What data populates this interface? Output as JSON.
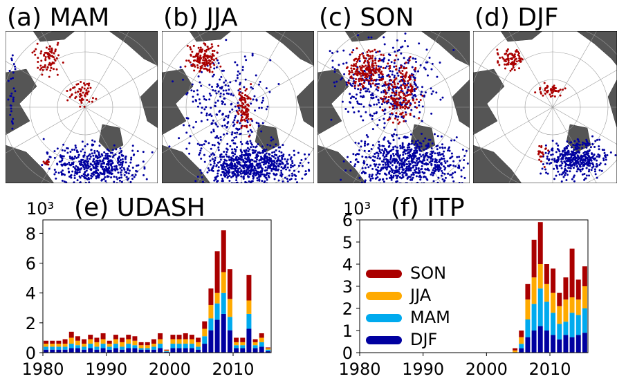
{
  "maps": [
    {
      "title": "(a) MAM"
    },
    {
      "title": "(b) JJA"
    },
    {
      "title": "(c) SON"
    },
    {
      "title": "(d) DJF"
    }
  ],
  "chart_data": [
    {
      "type": "bar",
      "stacked": true,
      "title": "(e) UDASH",
      "y_multiplier": "10³",
      "x": [
        1980,
        1981,
        1982,
        1983,
        1984,
        1985,
        1986,
        1987,
        1988,
        1989,
        1990,
        1991,
        1992,
        1993,
        1994,
        1995,
        1996,
        1997,
        1998,
        1999,
        2000,
        2001,
        2002,
        2003,
        2004,
        2005,
        2006,
        2007,
        2008,
        2009,
        2010,
        2011,
        2012,
        2013,
        2014,
        2015
      ],
      "series": [
        {
          "name": "DJF",
          "color": "#0000a0",
          "values": [
            0.2,
            0.2,
            0.2,
            0.2,
            0.3,
            0.3,
            0.2,
            0.3,
            0.2,
            0.3,
            0.2,
            0.3,
            0.2,
            0.3,
            0.3,
            0.2,
            0.2,
            0.2,
            0.3,
            0.05,
            0.3,
            0.3,
            0.3,
            0.3,
            0.2,
            0.6,
            1.5,
            2.2,
            2.6,
            1.5,
            0.3,
            0.3,
            1.6,
            0.3,
            0.4,
            0.1
          ]
        },
        {
          "name": "MAM",
          "color": "#00aaee",
          "values": [
            0.2,
            0.2,
            0.2,
            0.2,
            0.3,
            0.2,
            0.2,
            0.3,
            0.2,
            0.3,
            0.2,
            0.3,
            0.2,
            0.3,
            0.2,
            0.1,
            0.1,
            0.2,
            0.3,
            0.05,
            0.3,
            0.3,
            0.3,
            0.3,
            0.2,
            0.5,
            0.8,
            1.1,
            1.4,
            0.9,
            0.2,
            0.2,
            1.0,
            0.2,
            0.3,
            0.1
          ]
        },
        {
          "name": "JJA",
          "color": "#ffaa00",
          "values": [
            0.2,
            0.2,
            0.2,
            0.2,
            0.4,
            0.3,
            0.2,
            0.3,
            0.3,
            0.3,
            0.2,
            0.3,
            0.3,
            0.3,
            0.3,
            0.2,
            0.2,
            0.2,
            0.3,
            0.05,
            0.3,
            0.3,
            0.3,
            0.3,
            0.3,
            0.5,
            0.9,
            0.7,
            1.4,
            1.2,
            0.2,
            0.2,
            0.9,
            0.2,
            0.3,
            0.1
          ]
        },
        {
          "name": "SON",
          "color": "#aa0000",
          "values": [
            0.2,
            0.2,
            0.2,
            0.3,
            0.4,
            0.3,
            0.3,
            0.3,
            0.3,
            0.4,
            0.2,
            0.3,
            0.3,
            0.3,
            0.3,
            0.2,
            0.2,
            0.3,
            0.4,
            0.05,
            0.3,
            0.3,
            0.4,
            0.3,
            0.3,
            0.5,
            1.1,
            2.8,
            2.8,
            2.0,
            0.3,
            0.3,
            1.7,
            0.2,
            0.3,
            0.05
          ]
        }
      ],
      "xlim": [
        1980,
        2016
      ],
      "xticks": [
        1980,
        1990,
        2000,
        2010
      ],
      "ylim": [
        0,
        8.9
      ],
      "yticks": [
        0,
        2,
        4,
        6,
        8
      ],
      "legend": false
    },
    {
      "type": "bar",
      "stacked": true,
      "title": "(f) ITP",
      "y_multiplier": "10³",
      "x": [
        2004,
        2005,
        2006,
        2007,
        2008,
        2009,
        2010,
        2011,
        2012,
        2013,
        2014,
        2015
      ],
      "series": [
        {
          "name": "DJF",
          "color": "#0000a0",
          "values": [
            0,
            0.2,
            0.7,
            1.0,
            1.2,
            1.0,
            0.8,
            0.6,
            0.8,
            0.7,
            0.8,
            0.9
          ]
        },
        {
          "name": "MAM",
          "color": "#00aaee",
          "values": [
            0,
            0.2,
            0.8,
            1.2,
            1.7,
            1.3,
            1.0,
            0.7,
            0.6,
            1.1,
            0.9,
            1.1
          ]
        },
        {
          "name": "JJA",
          "color": "#ffaa00",
          "values": [
            0.1,
            0.3,
            0.9,
            1.2,
            1.1,
            0.8,
            0.9,
            0.8,
            1.0,
            0.7,
            0.7,
            1.0
          ]
        },
        {
          "name": "SON",
          "color": "#aa0000",
          "values": [
            0.1,
            0.3,
            0.7,
            1.7,
            1.9,
            0.9,
            1.1,
            0.6,
            1.0,
            2.2,
            0.9,
            0.9
          ]
        }
      ],
      "xlim": [
        1980,
        2016
      ],
      "xticks": [
        1980,
        1990,
        2000,
        2010
      ],
      "ylim": [
        0,
        6
      ],
      "yticks": [
        0,
        1,
        2,
        3,
        4,
        5,
        6
      ],
      "legend": true,
      "legend_loc": "center left"
    }
  ]
}
